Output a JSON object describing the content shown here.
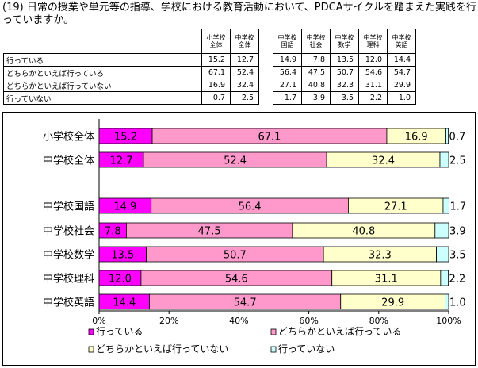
{
  "title": "(19) 日常の授業や単元等の指導、学校における教育活動において、PDCAサイクルを踏まえた実践を行っていますか。",
  "table": {
    "columns": [
      "小学校全体",
      "中学校全体",
      "中学校国語",
      "中学校社会",
      "中学校数学",
      "中学校理科",
      "中学校英語"
    ],
    "column_lines": [
      [
        "小学校",
        "全体"
      ],
      [
        "中学校",
        "全体"
      ],
      [
        "中学校",
        "国語"
      ],
      [
        "中学校",
        "社会"
      ],
      [
        "中学校",
        "数学"
      ],
      [
        "中学校",
        "理科"
      ],
      [
        "中学校",
        "英語"
      ]
    ],
    "rows": [
      {
        "label": "行っている",
        "values": [
          "15.2",
          "12.7",
          "14.9",
          "7.8",
          "13.5",
          "12.0",
          "14.4"
        ]
      },
      {
        "label": "どちらかといえば行っている",
        "values": [
          "67.1",
          "52.4",
          "56.4",
          "47.5",
          "50.7",
          "54.6",
          "54.7"
        ]
      },
      {
        "label": "どちらかといえば行っていない",
        "values": [
          "16.9",
          "32.4",
          "27.1",
          "40.8",
          "32.3",
          "31.1",
          "29.9"
        ]
      },
      {
        "label": "行っていない",
        "values": [
          "0.7",
          "2.5",
          "1.7",
          "3.9",
          "3.5",
          "2.2",
          "1.0"
        ]
      }
    ]
  },
  "chart_data": {
    "type": "bar",
    "orientation": "horizontal",
    "stacked": true,
    "categories": [
      "小学校全体",
      "中学校全体",
      "中学校国語",
      "中学校社会",
      "中学校数学",
      "中学校理科",
      "中学校英語"
    ],
    "series": [
      {
        "name": "行っている",
        "color": "#FF00FF",
        "values": [
          15.2,
          12.7,
          14.9,
          7.8,
          13.5,
          12.0,
          14.4
        ]
      },
      {
        "name": "どちらかといえば行っている",
        "color": "#FF99CC",
        "values": [
          67.1,
          52.4,
          56.4,
          47.5,
          50.7,
          54.6,
          54.7
        ]
      },
      {
        "name": "どちらかといえば行っていない",
        "color": "#FFFFCC",
        "values": [
          16.9,
          32.4,
          27.1,
          40.8,
          32.3,
          31.1,
          29.9
        ]
      },
      {
        "name": "行っていない",
        "color": "#CCFFFF",
        "values": [
          0.7,
          2.5,
          1.7,
          3.9,
          3.5,
          2.2,
          1.0
        ]
      }
    ],
    "xlim": [
      0,
      100
    ],
    "x_ticks": [
      "0%",
      "20%",
      "40%",
      "60%",
      "80%",
      "100%"
    ],
    "legend": "bottom"
  }
}
